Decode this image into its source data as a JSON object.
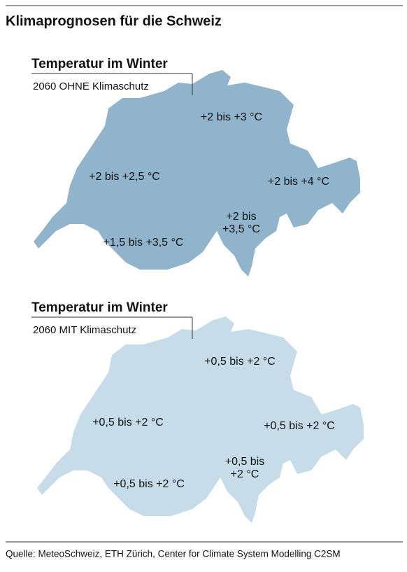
{
  "title": "Klimaprognosen für die Schweiz",
  "maps": [
    {
      "heading": "Temperatur im Winter",
      "subheading": "2060 OHNE Klimaschutz",
      "regions": [
        {
          "label": [
            "+2 bis +3 °C"
          ]
        },
        {
          "label": [
            "+2 bis +2,5 °C"
          ]
        },
        {
          "label": [
            "+2 bis +4 °C"
          ]
        },
        {
          "label": [
            "+2 bis",
            "+3,5 °C"
          ]
        },
        {
          "label": [
            "+1,5 bis +3,5 °C"
          ]
        }
      ]
    },
    {
      "heading": "Temperatur im Winter",
      "subheading": "2060 MIT Klimaschutz",
      "regions": [
        {
          "label": [
            "+0,5 bis +2 °C"
          ]
        },
        {
          "label": [
            "+0,5 bis +2 °C"
          ]
        },
        {
          "label": [
            "+0,5 bis +2 °C"
          ]
        },
        {
          "label": [
            "+0,5 bis",
            "+2 °C"
          ]
        },
        {
          "label": [
            "+0,5 bis +2 °C"
          ]
        }
      ]
    }
  ],
  "source": "Quelle: MeteoSchweiz, ETH Zürich, Center for Climate System Modelling C2SM"
}
